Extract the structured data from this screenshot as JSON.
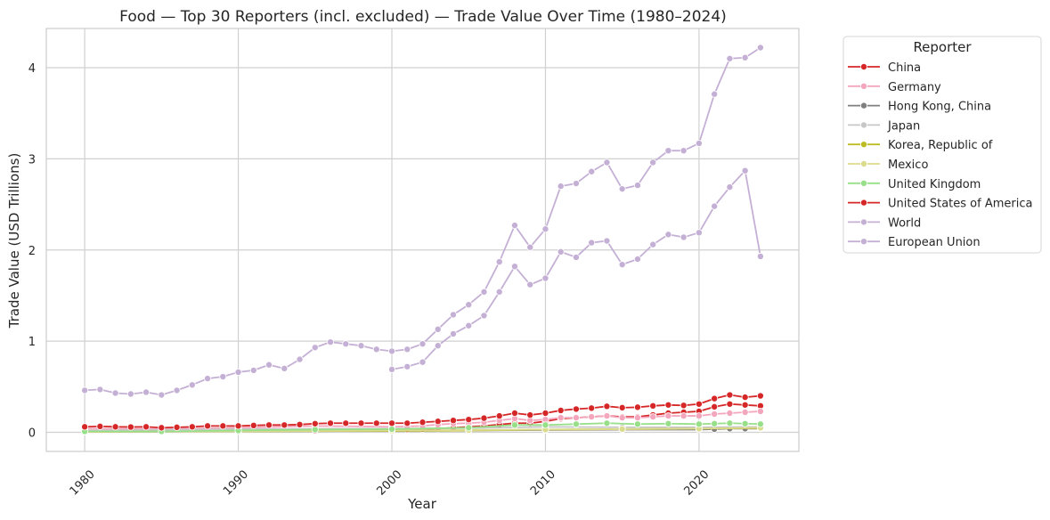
{
  "chart_data": {
    "type": "line",
    "title": "Food — Top 30 Reporters (incl. excluded) — Trade Value Over Time (1980–2024)",
    "xlabel": "Year",
    "ylabel": "Trade Value (USD Trillions)",
    "xlim": [
      1977.5,
      2026.5
    ],
    "ylim": [
      -0.21,
      4.43
    ],
    "xticks": [
      1980,
      1990,
      2000,
      2010,
      2020
    ],
    "yticks": [
      0,
      1,
      2,
      3,
      4
    ],
    "grid": true,
    "legend_title": "Reporter",
    "legend_position": "outside-right",
    "series": [
      {
        "name": "China",
        "color": "#d62728",
        "x": [
          1980,
          1985,
          1990,
          1995,
          2000,
          2001,
          2002,
          2003,
          2004,
          2005,
          2006,
          2007,
          2008,
          2009,
          2010,
          2011,
          2012,
          2013,
          2014,
          2015,
          2016,
          2017,
          2018,
          2019,
          2020,
          2021,
          2022,
          2023,
          2024
        ],
        "y": [
          0.01,
          0.01,
          0.015,
          0.02,
          0.03,
          0.032,
          0.035,
          0.04,
          0.05,
          0.06,
          0.07,
          0.085,
          0.1,
          0.1,
          0.12,
          0.15,
          0.16,
          0.17,
          0.18,
          0.17,
          0.17,
          0.19,
          0.21,
          0.22,
          0.23,
          0.28,
          0.31,
          0.3,
          0.29
        ]
      },
      {
        "name": "Germany",
        "color": "#f4a6bd",
        "x": [
          1980,
          1985,
          1990,
          1995,
          2000,
          2001,
          2002,
          2003,
          2004,
          2005,
          2006,
          2007,
          2008,
          2009,
          2010,
          2011,
          2012,
          2013,
          2014,
          2015,
          2016,
          2017,
          2018,
          2019,
          2020,
          2021,
          2022,
          2023,
          2024
        ],
        "y": [
          0.04,
          0.035,
          0.05,
          0.07,
          0.06,
          0.065,
          0.07,
          0.085,
          0.095,
          0.1,
          0.11,
          0.13,
          0.15,
          0.13,
          0.14,
          0.16,
          0.16,
          0.17,
          0.18,
          0.16,
          0.16,
          0.17,
          0.18,
          0.18,
          0.18,
          0.2,
          0.21,
          0.22,
          0.23
        ]
      },
      {
        "name": "Hong Kong, China",
        "color": "#7f7f7f",
        "x": [
          1980,
          1990,
          2000,
          2010,
          2015,
          2020,
          2021,
          2022,
          2023,
          2024
        ],
        "y": [
          0.005,
          0.01,
          0.015,
          0.025,
          0.03,
          0.03,
          0.035,
          0.04,
          0.04,
          0.04
        ]
      },
      {
        "name": "Japan",
        "color": "#c7c7c7",
        "x": [
          1980,
          1990,
          2000,
          2005,
          2010,
          2015,
          2020,
          2024
        ],
        "y": [
          0.02,
          0.035,
          0.04,
          0.045,
          0.06,
          0.055,
          0.055,
          0.06
        ]
      },
      {
        "name": "Korea, Republic of",
        "color": "#bcbd22",
        "x": [
          1980,
          1990,
          2000,
          2005,
          2010,
          2015,
          2020,
          2024
        ],
        "y": [
          0.005,
          0.01,
          0.015,
          0.02,
          0.03,
          0.035,
          0.04,
          0.045
        ]
      },
      {
        "name": "Mexico",
        "color": "#dbdb8d",
        "x": [
          1980,
          1990,
          2000,
          2005,
          2010,
          2015,
          2020,
          2024
        ],
        "y": [
          0.005,
          0.01,
          0.02,
          0.025,
          0.03,
          0.035,
          0.04,
          0.05
        ]
      },
      {
        "name": "United Kingdom",
        "color": "#98df8a",
        "x": [
          1980,
          1985,
          1990,
          1995,
          2000,
          2005,
          2008,
          2010,
          2012,
          2014,
          2016,
          2018,
          2020,
          2021,
          2022,
          2023,
          2024
        ],
        "y": [
          0.01,
          0.01,
          0.02,
          0.03,
          0.035,
          0.05,
          0.08,
          0.08,
          0.09,
          0.1,
          0.09,
          0.095,
          0.09,
          0.095,
          0.1,
          0.095,
          0.09
        ]
      },
      {
        "name": "United States of America",
        "color": "#d62728",
        "x": [
          1980,
          1981,
          1982,
          1983,
          1984,
          1985,
          1986,
          1987,
          1988,
          1989,
          1990,
          1991,
          1992,
          1993,
          1994,
          1995,
          1996,
          1997,
          1998,
          1999,
          2000,
          2001,
          2002,
          2003,
          2004,
          2005,
          2006,
          2007,
          2008,
          2009,
          2010,
          2011,
          2012,
          2013,
          2014,
          2015,
          2016,
          2017,
          2018,
          2019,
          2020,
          2021,
          2022,
          2023,
          2024
        ],
        "y": [
          0.06,
          0.065,
          0.06,
          0.058,
          0.06,
          0.05,
          0.055,
          0.06,
          0.07,
          0.07,
          0.07,
          0.075,
          0.08,
          0.08,
          0.085,
          0.095,
          0.1,
          0.1,
          0.1,
          0.1,
          0.1,
          0.1,
          0.11,
          0.12,
          0.13,
          0.14,
          0.155,
          0.18,
          0.21,
          0.19,
          0.21,
          0.24,
          0.255,
          0.265,
          0.285,
          0.27,
          0.275,
          0.29,
          0.3,
          0.295,
          0.31,
          0.37,
          0.41,
          0.385,
          0.4
        ]
      },
      {
        "name": "World",
        "color": "#c5b0d5",
        "x": [
          1980,
          1981,
          1982,
          1983,
          1984,
          1985,
          1986,
          1987,
          1988,
          1989,
          1990,
          1991,
          1992,
          1993,
          1994,
          1995,
          1996,
          1997,
          1998,
          1999,
          2000,
          2001,
          2002,
          2003,
          2004,
          2005,
          2006,
          2007,
          2008,
          2009,
          2010,
          2011,
          2012,
          2013,
          2014,
          2015,
          2016,
          2017,
          2018,
          2019,
          2020,
          2021,
          2022,
          2023,
          2024
        ],
        "y": [
          0.46,
          0.47,
          0.43,
          0.42,
          0.44,
          0.41,
          0.46,
          0.52,
          0.59,
          0.61,
          0.66,
          0.68,
          0.74,
          0.7,
          0.8,
          0.93,
          0.99,
          0.97,
          0.95,
          0.91,
          0.89,
          0.91,
          0.97,
          1.13,
          1.29,
          1.4,
          1.54,
          1.87,
          2.27,
          2.03,
          2.23,
          2.7,
          2.73,
          2.86,
          2.96,
          2.67,
          2.71,
          2.96,
          3.09,
          3.09,
          3.17,
          3.71,
          4.1,
          4.11,
          4.22
        ]
      },
      {
        "name": "European Union",
        "color": "#c5b0d5",
        "x": [
          2000,
          2001,
          2002,
          2003,
          2004,
          2005,
          2006,
          2007,
          2008,
          2009,
          2010,
          2011,
          2012,
          2013,
          2014,
          2015,
          2016,
          2017,
          2018,
          2019,
          2020,
          2021,
          2022,
          2023,
          2024
        ],
        "y": [
          0.69,
          0.72,
          0.77,
          0.95,
          1.08,
          1.17,
          1.28,
          1.54,
          1.82,
          1.62,
          1.69,
          1.98,
          1.92,
          2.08,
          2.1,
          1.84,
          1.9,
          2.06,
          2.17,
          2.14,
          2.19,
          2.48,
          2.69,
          2.87,
          1.93
        ]
      }
    ]
  }
}
